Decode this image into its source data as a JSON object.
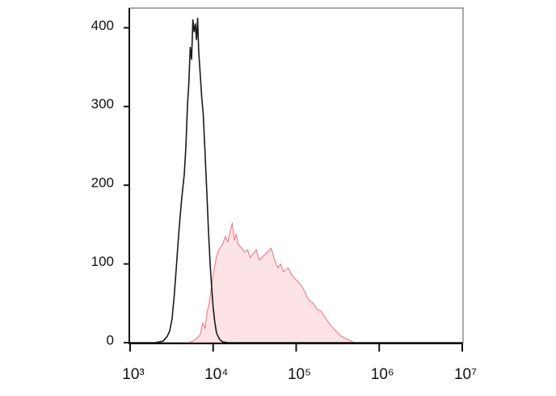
{
  "chart_data": {
    "type": "histogram-overlay",
    "xscale": "log",
    "xlim": [
      1000,
      10000000
    ],
    "xticks": [
      {
        "value": 1000,
        "label": "10³"
      },
      {
        "value": 10000,
        "label": "10⁴"
      },
      {
        "value": 100000,
        "label": "10⁵"
      },
      {
        "value": 1000000,
        "label": "10⁶"
      },
      {
        "value": 10000000,
        "label": "10⁷"
      }
    ],
    "ylim": [
      0,
      425
    ],
    "yticks": [
      0,
      100,
      200,
      300,
      400
    ],
    "series": [
      {
        "color": "#1a1a1a",
        "fill": false,
        "x": [
          1000,
          2000,
          2500,
          2800,
          3000,
          3200,
          3400,
          3600,
          3800,
          4000,
          4200,
          4500,
          4700,
          4900,
          5100,
          5300,
          5500,
          5700,
          5900,
          6100,
          6300,
          6500,
          6700,
          7000,
          7300,
          7600,
          8000,
          8400,
          8800,
          9200,
          9600,
          10000,
          10500,
          11000,
          12000,
          13000,
          15000,
          10000000
        ],
        "values": [
          0,
          0,
          2,
          8,
          15,
          30,
          60,
          95,
          130,
          160,
          185,
          215,
          250,
          300,
          330,
          375,
          360,
          410,
          395,
          405,
          385,
          412,
          370,
          340,
          310,
          290,
          240,
          190,
          140,
          100,
          70,
          45,
          25,
          12,
          4,
          1,
          0,
          0
        ]
      },
      {
        "color": "#e8707e",
        "fill": true,
        "fill_color": "#fde3e6",
        "x": [
          5000,
          6000,
          7000,
          7500,
          8000,
          8500,
          9000,
          9500,
          10000,
          11000,
          12000,
          13000,
          14000,
          15000,
          16000,
          17000,
          18000,
          19000,
          20000,
          22000,
          24000,
          26000,
          28000,
          30000,
          33000,
          36000,
          40000,
          45000,
          50000,
          55000,
          60000,
          65000,
          70000,
          80000,
          90000,
          100000,
          120000,
          140000,
          160000,
          180000,
          200000,
          230000,
          260000,
          300000,
          350000,
          400000,
          500000,
          10000000
        ],
        "values": [
          0,
          3,
          10,
          25,
          18,
          40,
          50,
          70,
          85,
          110,
          120,
          125,
          135,
          128,
          140,
          152,
          130,
          138,
          125,
          120,
          115,
          118,
          108,
          112,
          118,
          105,
          110,
          115,
          120,
          105,
          95,
          100,
          90,
          95,
          85,
          80,
          70,
          55,
          50,
          42,
          40,
          30,
          22,
          15,
          8,
          5,
          0,
          0
        ]
      }
    ]
  }
}
